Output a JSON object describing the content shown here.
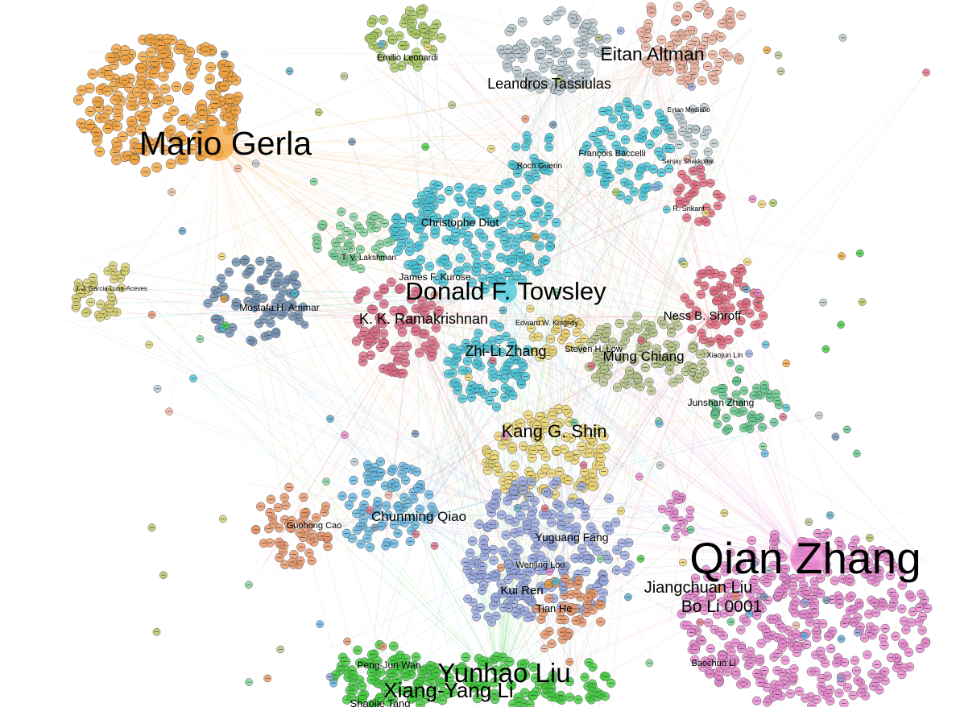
{
  "graph": {
    "colors": {
      "orange": "#f4a33c",
      "olive_green": "#a9c95e",
      "grey_blue": "#b8c8cf",
      "salmon": "#efb29c",
      "cyan": "#43c6d9",
      "teal_blue": "#5aa7c9",
      "green_light": "#7fd49a",
      "khaki": "#d8cf6b",
      "slate_blue": "#6d8fb1",
      "rose": "#e06a84",
      "crimson": "#e5677a",
      "yellow": "#efd66f",
      "sage": "#b6c68a",
      "mint": "#5fc88a",
      "periwinkle": "#97a9e4",
      "sky": "#64b7e2",
      "coral": "#ea9366",
      "pink": "#ea86cf",
      "bright_green": "#3ccd3a"
    },
    "labels": {
      "mario_gerla": "Mario Gerla",
      "emilio_leonardi": "Emilio Leonardi",
      "eitan_altman": "Eitan Altman",
      "leandros_tassiulas": "Leandros Tassiulas",
      "eytan_modiano": "Eytan Modiano",
      "francois_baccelli": "François Baccelli",
      "roch_guerin": "Roch Guerin",
      "sanjay_shakkottai": "Sanjay Shakkottai",
      "r_srikant": "R. Srikant",
      "christophe_diot": "Christophe Diot",
      "tv_lakshman": "T. V. Lakshman",
      "james_kurose": "James F. Kurose",
      "jj_garcia": "J. J. Garcia-Luna-Aceves",
      "donald_towsley": "Donald F. Towsley",
      "mostafa_ammar": "Mostafa H. Ammar",
      "kk_ramakrishnan": "K. K. Ramakrishnan",
      "edward_knightly": "Edward W. Knightly",
      "ness_shroff": "Ness B. Shroff",
      "zhili_zhang": "Zhi-Li Zhang",
      "steven_low": "Steven H. Low",
      "mung_chiang": "Mung Chiang",
      "xiaojun_lin": "Xiaojun Lin",
      "junshan_zhang": "Junshan Zhang",
      "kang_shin": "Kang G. Shin",
      "guohong_cao": "Guohong Cao",
      "chunming_qiao": "Chunming Qiao",
      "yuguang_fang": "Yuguang Fang",
      "qian_zhang": "Qian Zhang",
      "wenjing_lou": "Wenjing Lou",
      "jiangchuan_liu": "Jiangchuan Liu",
      "kui_ren": "Kui Ren",
      "bo_li": "Bo Li 0001",
      "tian_he": "Tian He",
      "baochun_li": "Baochun Li",
      "pengjun_wan": "Peng-Jun Wan",
      "yunhao_liu": "Yunhao Liu",
      "xiangyang_li": "Xiang-Yang Li",
      "shaojie_tang": "Shaojie Tang"
    }
  }
}
